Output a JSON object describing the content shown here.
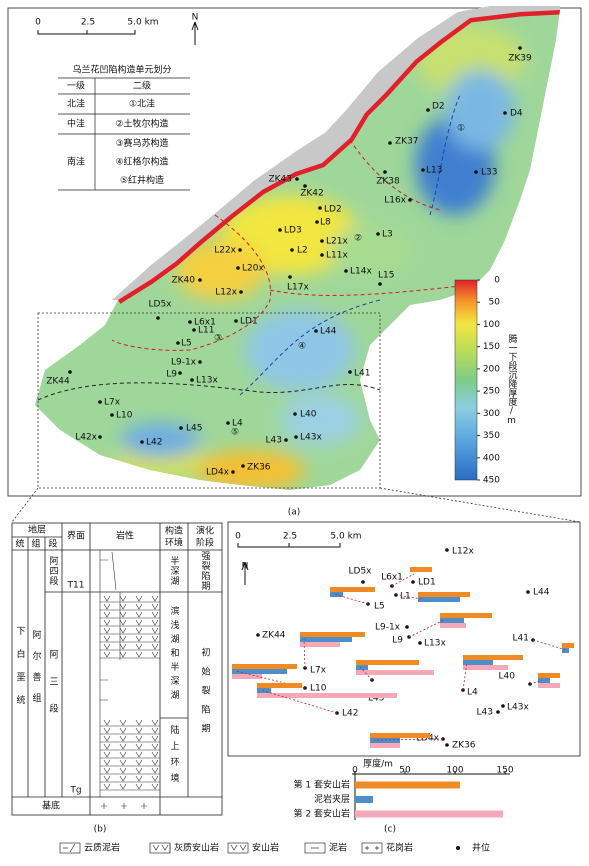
{
  "map": {
    "scale_labels": [
      "0",
      "2.5",
      "5.0 km"
    ],
    "north": "N",
    "table": {
      "title": "乌兰花凹陷构造单元划分",
      "headers": [
        "一级",
        "二级"
      ],
      "rows": [
        {
          "level1": "北洼",
          "level2": [
            "①北洼"
          ]
        },
        {
          "level1": "中洼",
          "level2": [
            "②土牧尔构造"
          ]
        },
        {
          "level1": "南洼",
          "level2": [
            "③赛乌苏构造",
            "④红格尔构造",
            "⑤红井构造"
          ]
        }
      ]
    },
    "zones": [
      "①",
      "②",
      "③",
      "④",
      "⑤"
    ],
    "wells": [
      "ZK39",
      "D2",
      "D4",
      "ZK37",
      "L13",
      "L33",
      "ZK38",
      "ZK43",
      "ZK42",
      "L16x",
      "LD2",
      "L8",
      "LD3",
      "L21x",
      "L3",
      "L2",
      "L22x",
      "L11x",
      "L20x",
      "L14x",
      "L15",
      "ZK40",
      "L17x",
      "L12x",
      "LD5x",
      "L6x1",
      "LD1",
      "L11",
      "L44",
      "L5",
      "L9-1x",
      "L41",
      "L9",
      "L13x",
      "ZK44",
      "L7x",
      "L10",
      "L40",
      "L45",
      "L4",
      "L42x",
      "L43x",
      "L43",
      "L42",
      "LD4x",
      "ZK36"
    ],
    "colorbar": {
      "title": "腾一下段沉降厚度/m",
      "lim": [
        0,
        450
      ],
      "ticks": [
        0,
        50,
        100,
        150,
        200,
        250,
        300,
        350,
        400,
        450
      ]
    },
    "caption": "(a)"
  },
  "panel_b": {
    "headers": {
      "stratum": "地层",
      "series": "统",
      "formation": "组",
      "member": "段",
      "surface": "界面",
      "lithology": "岩性",
      "environment": [
        "构造",
        "环境"
      ],
      "stage": [
        "演化",
        "阶段"
      ]
    },
    "series": "下白垩统",
    "formation": "阿尔善组",
    "members": [
      "阿四段",
      "阿三段"
    ],
    "surfaces": [
      "T11",
      "Tg"
    ],
    "environments": [
      "半深湖",
      "滨浅湖和半深湖",
      "陆上环境"
    ],
    "stages": [
      "强裂陷期",
      "初始裂陷期"
    ],
    "basement": "基底",
    "caption": "(b)"
  },
  "panel_c": {
    "scale_labels": [
      "0",
      "2.5",
      "5.0 km"
    ],
    "north": "N",
    "wells": [
      {
        "name": "L12x"
      },
      {
        "name": "LD5x"
      },
      {
        "name": "L6x1",
        "thickness": [
          22,
          0,
          0
        ]
      },
      {
        "name": "LD1"
      },
      {
        "name": "L44"
      },
      {
        "name": "L5",
        "thickness": [
          45,
          13,
          0
        ]
      },
      {
        "name": "L1",
        "thickness": [
          52,
          42,
          0
        ]
      },
      {
        "name": "L9-1x"
      },
      {
        "name": "L9",
        "thickness": [
          52,
          24,
          26
        ]
      },
      {
        "name": "L13x"
      },
      {
        "name": "ZK44"
      },
      {
        "name": "L41",
        "thickness": [
          12,
          7,
          0
        ]
      },
      {
        "name": "L7x",
        "thickness": [
          65,
          52,
          40
        ]
      },
      {
        "name": "L10",
        "thickness": [
          65,
          55,
          30
        ]
      },
      {
        "name": "L45",
        "thickness": [
          63,
          12,
          78
        ]
      },
      {
        "name": "L4",
        "thickness": [
          60,
          30,
          45
        ]
      },
      {
        "name": "L40",
        "thickness": [
          22,
          12,
          22
        ]
      },
      {
        "name": "L42",
        "thickness": [
          45,
          14,
          140
        ]
      },
      {
        "name": "L43x"
      },
      {
        "name": "L43"
      },
      {
        "name": "LD4x",
        "thickness": [
          60,
          30,
          30
        ]
      },
      {
        "name": "ZK36"
      }
    ],
    "thickness_legend": {
      "type": "bar",
      "axis_label": "厚度/m",
      "categories": [
        "第 1 套安山岩",
        "泥岩夹层",
        "第 2 套安山岩"
      ],
      "colors": [
        "#f08a24",
        "#4f8fc9",
        "#f5a9b8"
      ],
      "values": [
        105,
        18,
        148
      ],
      "xlim": [
        0,
        150
      ],
      "xticks": [
        0,
        50,
        100,
        150
      ]
    },
    "caption": "(c)"
  },
  "legend": [
    "云质泥岩",
    "灰质安山岩",
    "安山岩",
    "泥岩",
    "花岗岩",
    "井位"
  ]
}
